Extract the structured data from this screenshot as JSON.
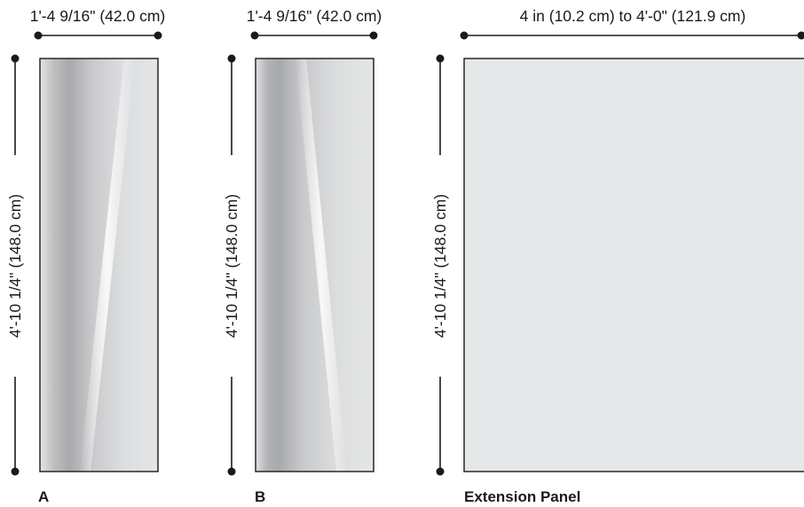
{
  "panels": [
    {
      "id": "A",
      "label": "A",
      "width_text": "1'-4 9/16\" (42.0 cm)",
      "height_text": "4'-10 1/4\" (148.0 cm)",
      "finish": "mirror-gradient"
    },
    {
      "id": "B",
      "label": "B",
      "width_text": "1'-4 9/16\" (42.0 cm)",
      "height_text": "4'-10 1/4\" (148.0 cm)",
      "finish": "mirror-gradient"
    },
    {
      "id": "ext",
      "label": "Extension Panel",
      "width_text": "4 in (10.2 cm) to 4'-0\" (121.9 cm)",
      "height_text": "4'-10 1/4\" (148.0 cm)",
      "finish": "flat-gray"
    }
  ],
  "colors": {
    "line": "#1a1a1a",
    "flat_panel": "#e6e7e8",
    "mirror_dark": "#a8a9ab",
    "mirror_light": "#ffffff",
    "mirror_base": "#dcdddf"
  }
}
